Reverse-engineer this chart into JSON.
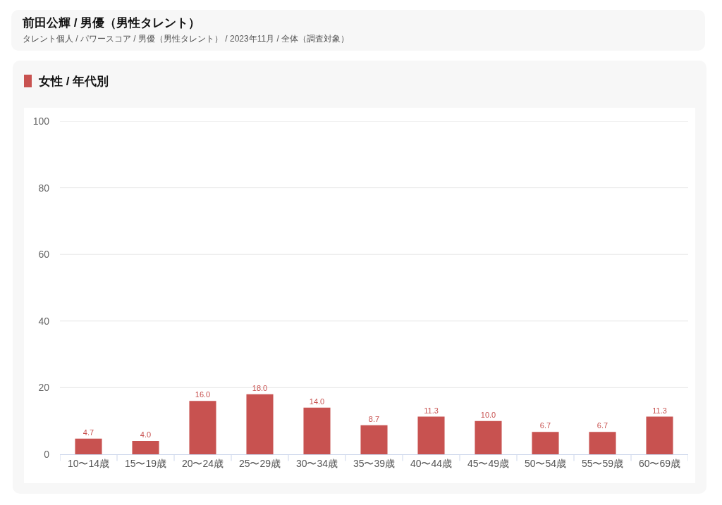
{
  "chart_data": {
    "type": "bar",
    "title": "前田公輝 / 男優（男性タレント）",
    "subtitle": "タレント個人 / パワースコア / 男優（男性タレント） / 2023年11月 / 全体（調査対象）",
    "annotations": [
      "女性 / 年代別"
    ],
    "categories": [
      "10〜14歳",
      "15〜19歳",
      "20〜24歳",
      "25〜29歳",
      "30〜34歳",
      "35〜39歳",
      "40〜44歳",
      "45〜49歳",
      "50〜54歳",
      "55〜59歳",
      "60〜69歳"
    ],
    "values": [
      4.7,
      4.0,
      16.0,
      18.0,
      14.0,
      8.7,
      11.3,
      10.0,
      6.7,
      6.7,
      11.3
    ],
    "value_labels": [
      "4.7",
      "4.0",
      "16.0",
      "18.0",
      "14.0",
      "8.7",
      "11.3",
      "10.0",
      "6.7",
      "6.7",
      "11.3"
    ],
    "color": "#c85250",
    "ylim": [
      0,
      100
    ],
    "yticks": [
      0,
      20,
      40,
      60,
      80,
      100
    ],
    "grid": "y"
  }
}
